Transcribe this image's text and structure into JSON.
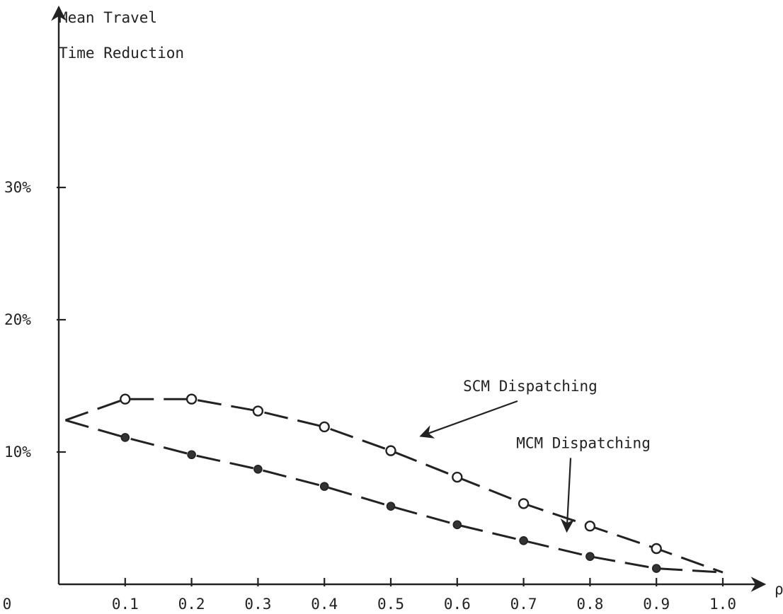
{
  "chart_data": {
    "type": "line",
    "ylabel_line1": "Mean Travel",
    "ylabel_line2": "Time Reduction",
    "xlabel": "ρ",
    "x_ticks": [
      {
        "value": 0.0,
        "label": "0"
      },
      {
        "value": 0.1,
        "label": "0.1"
      },
      {
        "value": 0.2,
        "label": "0.2"
      },
      {
        "value": 0.3,
        "label": "0.3"
      },
      {
        "value": 0.4,
        "label": "0.4"
      },
      {
        "value": 0.5,
        "label": "0.5"
      },
      {
        "value": 0.6,
        "label": "0.6"
      },
      {
        "value": 0.7,
        "label": "0.7"
      },
      {
        "value": 0.8,
        "label": "0.8"
      },
      {
        "value": 0.9,
        "label": "0.9"
      },
      {
        "value": 1.0,
        "label": "1.0"
      }
    ],
    "y_ticks": [
      {
        "value": 10,
        "label": "10%"
      },
      {
        "value": 20,
        "label": "20%"
      },
      {
        "value": 30,
        "label": "30%"
      }
    ],
    "xlim": [
      0,
      1.05
    ],
    "ylim": [
      0,
      40
    ],
    "series": [
      {
        "name": "SCM Dispatching",
        "marker": "open-circle",
        "curve_x": [
          0.01,
          0.1,
          0.2,
          0.3,
          0.4,
          0.5,
          0.6,
          0.7,
          0.8,
          0.9,
          1.0
        ],
        "curve_y": [
          12.4,
          14.0,
          14.0,
          13.1,
          11.9,
          10.1,
          8.1,
          6.1,
          4.4,
          2.7,
          0.9
        ],
        "points_x": [
          0.1,
          0.2,
          0.3,
          0.4,
          0.5,
          0.6,
          0.7,
          0.8,
          0.9
        ],
        "points_y": [
          14.0,
          14.0,
          13.1,
          11.9,
          10.1,
          8.1,
          6.1,
          4.4,
          2.7
        ],
        "label_x": 0.71,
        "label_y": 14.6,
        "arrow_to_x": 0.545,
        "arrow_to_y": 11.2
      },
      {
        "name": "MCM Dispatching",
        "marker": "filled-circle",
        "curve_x": [
          0.01,
          0.1,
          0.2,
          0.3,
          0.4,
          0.5,
          0.6,
          0.7,
          0.8,
          0.9,
          1.0
        ],
        "curve_y": [
          12.4,
          11.1,
          9.8,
          8.7,
          7.4,
          5.9,
          4.5,
          3.3,
          2.1,
          1.2,
          0.9
        ],
        "points_x": [
          0.1,
          0.2,
          0.3,
          0.4,
          0.5,
          0.6,
          0.7,
          0.8,
          0.9
        ],
        "points_y": [
          11.1,
          9.8,
          8.7,
          7.4,
          5.9,
          4.5,
          3.3,
          2.1,
          1.2
        ],
        "label_x": 0.79,
        "label_y": 10.3,
        "arrow_to_x": 0.765,
        "arrow_to_y": 4.0
      }
    ]
  }
}
